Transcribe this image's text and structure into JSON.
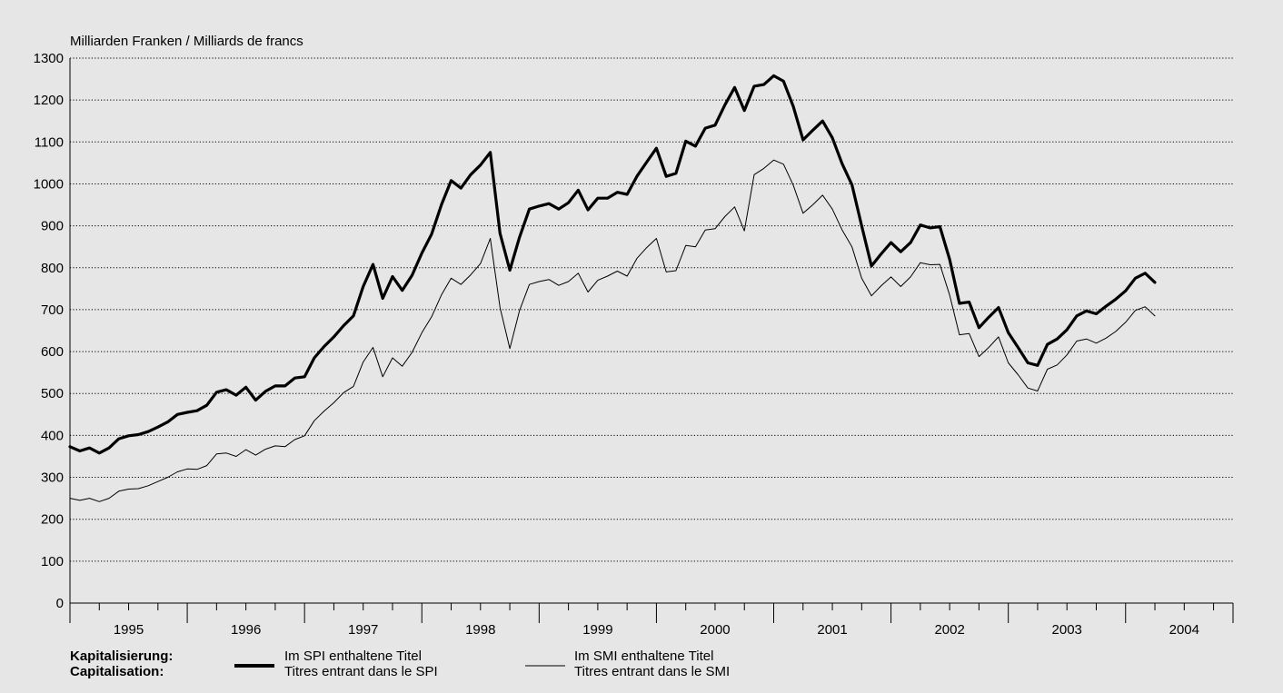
{
  "chart_data": {
    "type": "line",
    "ylabel": "Milliarden Franken / Milliards de francs",
    "ylim": [
      0,
      1300
    ],
    "yticks": [
      0,
      100,
      200,
      300,
      400,
      500,
      600,
      700,
      800,
      900,
      1000,
      1100,
      1200,
      1300
    ],
    "xlim": [
      1995.0,
      2004.916
    ],
    "xtick_labels": [
      "1995",
      "1996",
      "1997",
      "1998",
      "1999",
      "2000",
      "2001",
      "2002",
      "2003",
      "2004"
    ],
    "grid": true,
    "legend": {
      "title_de": "Kapitalisierung:",
      "title_fr": "Capitalisation:",
      "placement": "bottom"
    },
    "series": [
      {
        "name": "Im SPI enthaltene Titel",
        "name_fr": "Titres entrant dans le SPI",
        "style": "thick",
        "color": "#000000",
        "start": "1995-01",
        "values": [
          373,
          363,
          370,
          358,
          370,
          392,
          399,
          402,
          409,
          420,
          432,
          450,
          455,
          459,
          472,
          503,
          509,
          496,
          515,
          484,
          505,
          518,
          518,
          537,
          540,
          585,
          612,
          635,
          662,
          685,
          755,
          808,
          727,
          779,
          746,
          782,
          835,
          880,
          950,
          1008,
          990,
          1022,
          1045,
          1075,
          882,
          794,
          873,
          940,
          947,
          953,
          940,
          955,
          985,
          938,
          966,
          966,
          980,
          975,
          1018,
          1052,
          1085,
          1018,
          1025,
          1102,
          1090,
          1133,
          1140,
          1188,
          1230,
          1175,
          1233,
          1237,
          1258,
          1245,
          1185,
          1105,
          1128,
          1150,
          1110,
          1048,
          998,
          900,
          804,
          833,
          860,
          838,
          860,
          902,
          895,
          898,
          820,
          715,
          718,
          657,
          682,
          705,
          645,
          610,
          573,
          567,
          617,
          630,
          652,
          685,
          697,
          690,
          708,
          725,
          745,
          775,
          787,
          765
        ]
      },
      {
        "name": "Im SMI enthaltene Titel",
        "name_fr": "Titres entrant dans le SMI",
        "style": "thin",
        "color": "#000000",
        "start": "1995-01",
        "values": [
          250,
          245,
          250,
          242,
          250,
          267,
          272,
          273,
          280,
          290,
          300,
          313,
          320,
          319,
          328,
          356,
          358,
          350,
          366,
          353,
          367,
          375,
          373,
          390,
          399,
          435,
          458,
          478,
          502,
          517,
          575,
          610,
          540,
          585,
          565,
          598,
          645,
          683,
          735,
          775,
          760,
          783,
          810,
          870,
          705,
          607,
          698,
          760,
          767,
          772,
          758,
          767,
          787,
          742,
          770,
          780,
          792,
          780,
          822,
          848,
          870,
          790,
          793,
          853,
          850,
          890,
          893,
          922,
          945,
          888,
          1022,
          1037,
          1057,
          1047,
          997,
          930,
          950,
          973,
          940,
          890,
          850,
          775,
          733,
          757,
          778,
          755,
          778,
          812,
          807,
          808,
          735,
          640,
          643,
          588,
          610,
          635,
          573,
          545,
          513,
          506,
          558,
          568,
          592,
          625,
          630,
          620,
          632,
          648,
          670,
          698,
          707,
          685
        ]
      }
    ]
  }
}
